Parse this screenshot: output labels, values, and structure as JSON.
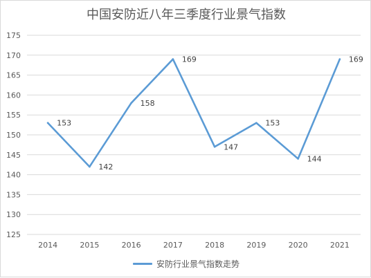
{
  "chart_data": {
    "type": "line",
    "title": "中国安防近八年三季度行业景气指数",
    "categories": [
      "2014",
      "2015",
      "2016",
      "2017",
      "2018",
      "2019",
      "2020",
      "2021"
    ],
    "series": [
      {
        "name": "安防行业景气指数走势",
        "values": [
          153,
          142,
          158,
          169,
          147,
          153,
          144,
          169
        ],
        "color": "#5b9bd5"
      }
    ],
    "ylim": [
      125,
      175
    ],
    "yticks": [
      125,
      130,
      135,
      140,
      145,
      150,
      155,
      160,
      165,
      170,
      175
    ],
    "grid": true,
    "data_labels": true,
    "legend_position": "bottom"
  }
}
